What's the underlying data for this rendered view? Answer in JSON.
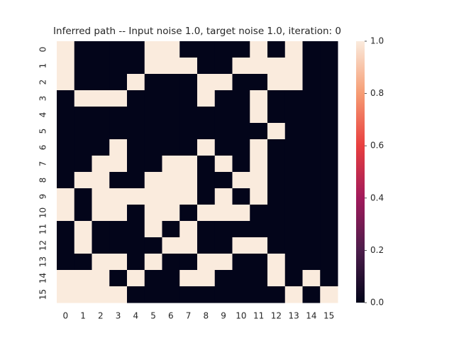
{
  "chart_data": {
    "type": "heatmap",
    "title": "Inferred path -- Input noise 1.0, target noise 1.0, iteration: 0",
    "x_labels": [
      0,
      1,
      2,
      3,
      4,
      5,
      6,
      7,
      8,
      9,
      10,
      11,
      12,
      13,
      14,
      15
    ],
    "y_labels": [
      0,
      1,
      2,
      3,
      4,
      5,
      6,
      7,
      8,
      9,
      10,
      11,
      12,
      13,
      14,
      15
    ],
    "values": [
      [
        1,
        0,
        0,
        0,
        0,
        1,
        1,
        0,
        0,
        0,
        0,
        1,
        0,
        1,
        0,
        0
      ],
      [
        1,
        0,
        0,
        0,
        0,
        1,
        1,
        1,
        0,
        0,
        1,
        1,
        1,
        1,
        0,
        0
      ],
      [
        1,
        0,
        0,
        0,
        1,
        0,
        0,
        0,
        1,
        1,
        0,
        0,
        1,
        1,
        0,
        0
      ],
      [
        0,
        1,
        1,
        1,
        0,
        0,
        0,
        0,
        1,
        0,
        0,
        1,
        0,
        0,
        0,
        0
      ],
      [
        0,
        0,
        0,
        0,
        0,
        0,
        0,
        0,
        0,
        0,
        0,
        1,
        0,
        0,
        0,
        0
      ],
      [
        0,
        0,
        0,
        0,
        0,
        0,
        0,
        0,
        0,
        0,
        0,
        0,
        1,
        0,
        0,
        0
      ],
      [
        0,
        0,
        0,
        1,
        0,
        0,
        0,
        0,
        1,
        0,
        0,
        1,
        0,
        0,
        0,
        0
      ],
      [
        0,
        0,
        1,
        1,
        0,
        0,
        1,
        1,
        0,
        1,
        0,
        1,
        0,
        0,
        0,
        0
      ],
      [
        0,
        1,
        1,
        0,
        0,
        1,
        1,
        1,
        0,
        0,
        1,
        1,
        0,
        0,
        0,
        0
      ],
      [
        1,
        0,
        1,
        1,
        1,
        1,
        1,
        1,
        0,
        1,
        0,
        1,
        0,
        0,
        0,
        0
      ],
      [
        1,
        0,
        1,
        1,
        0,
        1,
        1,
        0,
        1,
        1,
        1,
        0,
        0,
        0,
        0,
        0
      ],
      [
        0,
        1,
        0,
        0,
        0,
        1,
        0,
        1,
        0,
        0,
        0,
        0,
        0,
        0,
        0,
        0
      ],
      [
        0,
        1,
        0,
        0,
        0,
        0,
        1,
        1,
        0,
        0,
        1,
        1,
        0,
        0,
        0,
        0
      ],
      [
        0,
        0,
        1,
        1,
        0,
        1,
        0,
        0,
        1,
        1,
        0,
        0,
        1,
        0,
        0,
        0
      ],
      [
        1,
        1,
        1,
        0,
        1,
        0,
        0,
        1,
        1,
        0,
        0,
        0,
        1,
        0,
        1,
        0
      ],
      [
        1,
        1,
        1,
        1,
        0,
        0,
        0,
        0,
        0,
        0,
        0,
        0,
        0,
        1,
        0,
        1
      ]
    ],
    "clim": [
      0,
      1
    ],
    "cticks": [
      {
        "value": 0,
        "label": "0.0"
      },
      0.2,
      0.4,
      0.6,
      0.8,
      {
        "value": 1,
        "label": "1.0"
      }
    ],
    "colormap": [
      "#03051a",
      "#4c1d4b",
      "#a11a5b",
      "#e83f3f",
      "#f69c73",
      "#faebdd"
    ]
  }
}
